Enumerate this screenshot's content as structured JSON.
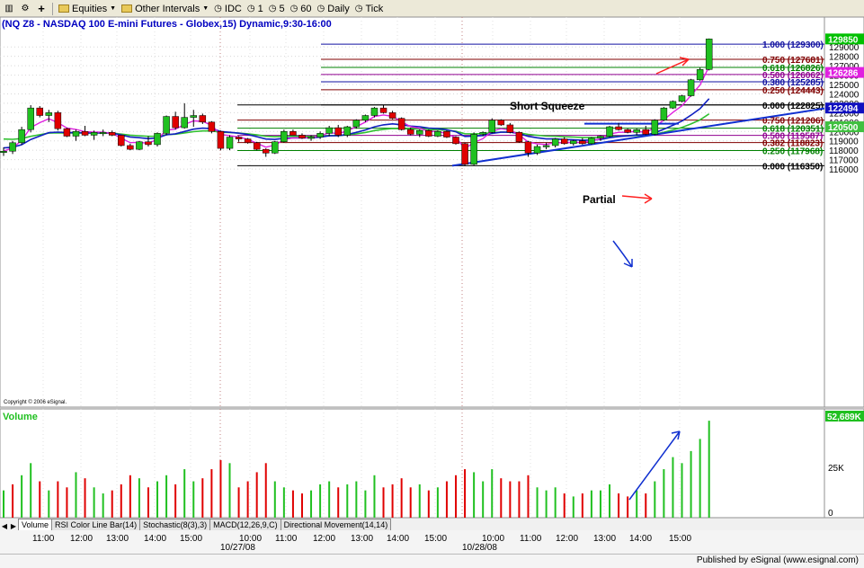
{
  "toolbar": {
    "equities_label": "Equities",
    "intervals_label": "Other Intervals",
    "idc_label": "IDC",
    "btn_1": "1",
    "btn_5": "5",
    "btn_60": "60",
    "daily_label": "Daily",
    "tick_label": "Tick"
  },
  "title_symbol": "(NQ Z8 - NASDAQ 100 E-mini Futures - Globex,15)",
  "title_detail": "Dynamic,9:30-16:00",
  "copyright": "Copyright © 2006 eSignal.",
  "annotations": {
    "short_squeeze": "Short Squeeze",
    "partial": "Partial"
  },
  "fib_upper": [
    {
      "label": "1.000 (129300)",
      "value": 12930,
      "color": "#1010a0"
    },
    {
      "label": "0.750 (127681)",
      "value": 12768.1,
      "color": "#800000"
    },
    {
      "label": "0.618 (126826)",
      "value": 12682.6,
      "color": "#008000"
    },
    {
      "label": "0.500 (126062)",
      "value": 12606.2,
      "color": "#900090"
    },
    {
      "label": "0.380 (125285)",
      "value": 12528.5,
      "color": "#1010a0"
    },
    {
      "label": "0.250 (124443)",
      "value": 12444.3,
      "color": "#800000"
    },
    {
      "label": "0.000 (122825)",
      "value": 12282.5,
      "color": "#000000"
    }
  ],
  "fib_lower": [
    {
      "label": "0.000 (122825)",
      "value": 12282.5,
      "color": "#000000"
    },
    {
      "label": "0.750 (121206)",
      "value": 12120.6,
      "color": "#800000"
    },
    {
      "label": "0.618 (120351)",
      "value": 12035.1,
      "color": "#008000"
    },
    {
      "label": "0.500 (119587)",
      "value": 11958.7,
      "color": "#900090"
    },
    {
      "label": "0.382 (118823)",
      "value": 11882.3,
      "color": "#800000"
    },
    {
      "label": "0.250 (117968)",
      "value": 11796.8,
      "color": "#008000"
    },
    {
      "label": "0.000 (116350)",
      "value": 11635,
      "color": "#000000"
    }
  ],
  "price_axis": {
    "ticks": [
      "129000",
      "128000",
      "127000",
      "126000",
      "125000",
      "124000",
      "123000",
      "122000",
      "121000",
      "120000",
      "119000",
      "118000",
      "117000",
      "116000"
    ],
    "badges": [
      {
        "label": "129850",
        "value": 12985,
        "bg": "#00c000",
        "fg": "#ffffff"
      },
      {
        "label": "126286",
        "value": 12628.6,
        "bg": "#e020e0",
        "fg": "#ffffff"
      },
      {
        "label": "122494",
        "value": 12249.4,
        "bg": "#1010c0",
        "fg": "#ffffff"
      },
      {
        "label": "120500",
        "value": 12050,
        "bg": "#40c040",
        "fg": "#ffffff"
      }
    ]
  },
  "volume_panel": {
    "label": "Volume",
    "badge": "52,689K",
    "ticks": [
      "25K",
      "0"
    ]
  },
  "time_axis": {
    "ticks": [
      "11:00",
      "12:00",
      "13:00",
      "14:00",
      "15:00",
      "10:00",
      "11:00",
      "12:00",
      "13:00",
      "14:00",
      "15:00",
      "10:00",
      "11:00",
      "12:00",
      "13:00",
      "14:00",
      "15:00"
    ],
    "dates": [
      "10/27/08",
      "10/28/08"
    ]
  },
  "tabs": [
    "Volume",
    "RSI Color Line Bar(14)",
    "Stochastic(8(3),3)",
    "MACD(12,26,9,C)",
    "Directional Movement(14,14)"
  ],
  "published": "Published by eSignal (www.esignal.com)",
  "chart_data": {
    "type": "candlestick",
    "y_range": [
      11570,
      13000
    ],
    "bar_count": 78,
    "candles": [
      {
        "o": 11780,
        "h": 11830,
        "l": 11740,
        "c": 11790
      },
      {
        "o": 11790,
        "h": 11900,
        "l": 11760,
        "c": 11880
      },
      {
        "o": 11880,
        "h": 12050,
        "l": 11860,
        "c": 12020
      },
      {
        "o": 12020,
        "h": 12280,
        "l": 11990,
        "c": 12250
      },
      {
        "o": 12250,
        "h": 12270,
        "l": 12150,
        "c": 12170
      },
      {
        "o": 12170,
        "h": 12230,
        "l": 12100,
        "c": 12200
      },
      {
        "o": 12200,
        "h": 12220,
        "l": 12010,
        "c": 12030
      },
      {
        "o": 12030,
        "h": 12040,
        "l": 11940,
        "c": 11950
      },
      {
        "o": 11950,
        "h": 12020,
        "l": 11900,
        "c": 12000
      },
      {
        "o": 12000,
        "h": 12060,
        "l": 11950,
        "c": 11960
      },
      {
        "o": 11960,
        "h": 12010,
        "l": 11910,
        "c": 11990
      },
      {
        "o": 11990,
        "h": 12020,
        "l": 11950,
        "c": 11990
      },
      {
        "o": 11990,
        "h": 12010,
        "l": 11950,
        "c": 11960
      },
      {
        "o": 11960,
        "h": 11960,
        "l": 11840,
        "c": 11850
      },
      {
        "o": 11850,
        "h": 11870,
        "l": 11800,
        "c": 11810
      },
      {
        "o": 11810,
        "h": 11900,
        "l": 11800,
        "c": 11890
      },
      {
        "o": 11890,
        "h": 11950,
        "l": 11840,
        "c": 11860
      },
      {
        "o": 11860,
        "h": 11990,
        "l": 11840,
        "c": 11980
      },
      {
        "o": 11980,
        "h": 12170,
        "l": 11960,
        "c": 12160
      },
      {
        "o": 12160,
        "h": 12210,
        "l": 12020,
        "c": 12040
      },
      {
        "o": 12040,
        "h": 12300,
        "l": 12030,
        "c": 12150
      },
      {
        "o": 12150,
        "h": 12230,
        "l": 12050,
        "c": 12170
      },
      {
        "o": 12170,
        "h": 12190,
        "l": 12080,
        "c": 12100
      },
      {
        "o": 12100,
        "h": 12110,
        "l": 11980,
        "c": 12000
      },
      {
        "o": 12000,
        "h": 12010,
        "l": 11800,
        "c": 11820
      },
      {
        "o": 11820,
        "h": 11960,
        "l": 11800,
        "c": 11940
      },
      {
        "o": 11940,
        "h": 11950,
        "l": 11890,
        "c": 11920
      },
      {
        "o": 11920,
        "h": 11930,
        "l": 11870,
        "c": 11880
      },
      {
        "o": 11880,
        "h": 11890,
        "l": 11800,
        "c": 11810
      },
      {
        "o": 11810,
        "h": 11820,
        "l": 11730,
        "c": 11770
      },
      {
        "o": 11770,
        "h": 11900,
        "l": 11760,
        "c": 11890
      },
      {
        "o": 11890,
        "h": 12020,
        "l": 11880,
        "c": 12000
      },
      {
        "o": 12000,
        "h": 12020,
        "l": 11960,
        "c": 11960
      },
      {
        "o": 11960,
        "h": 11980,
        "l": 11920,
        "c": 11930
      },
      {
        "o": 11930,
        "h": 11960,
        "l": 11900,
        "c": 11940
      },
      {
        "o": 11940,
        "h": 12000,
        "l": 11920,
        "c": 11980
      },
      {
        "o": 11980,
        "h": 12060,
        "l": 11950,
        "c": 12040
      },
      {
        "o": 12040,
        "h": 12070,
        "l": 11940,
        "c": 11960
      },
      {
        "o": 11960,
        "h": 12060,
        "l": 11940,
        "c": 12050
      },
      {
        "o": 12050,
        "h": 12130,
        "l": 12030,
        "c": 12120
      },
      {
        "o": 12120,
        "h": 12180,
        "l": 12100,
        "c": 12170
      },
      {
        "o": 12170,
        "h": 12260,
        "l": 12150,
        "c": 12250
      },
      {
        "o": 12250,
        "h": 12280,
        "l": 12190,
        "c": 12200
      },
      {
        "o": 12200,
        "h": 12220,
        "l": 12130,
        "c": 12140
      },
      {
        "o": 12140,
        "h": 12150,
        "l": 12010,
        "c": 12020
      },
      {
        "o": 12020,
        "h": 12040,
        "l": 11960,
        "c": 11970
      },
      {
        "o": 11970,
        "h": 12020,
        "l": 11940,
        "c": 12010
      },
      {
        "o": 12010,
        "h": 12020,
        "l": 11940,
        "c": 11950
      },
      {
        "o": 11950,
        "h": 12010,
        "l": 11940,
        "c": 12000
      },
      {
        "o": 12000,
        "h": 12010,
        "l": 11930,
        "c": 11940
      },
      {
        "o": 11940,
        "h": 11950,
        "l": 11860,
        "c": 11870
      },
      {
        "o": 11870,
        "h": 11880,
        "l": 11630,
        "c": 11650
      },
      {
        "o": 11650,
        "h": 11990,
        "l": 11640,
        "c": 11970
      },
      {
        "o": 11970,
        "h": 12000,
        "l": 11950,
        "c": 11990
      },
      {
        "o": 11990,
        "h": 12140,
        "l": 11980,
        "c": 12120
      },
      {
        "o": 12120,
        "h": 12130,
        "l": 12060,
        "c": 12070
      },
      {
        "o": 12070,
        "h": 12090,
        "l": 11980,
        "c": 11990
      },
      {
        "o": 11990,
        "h": 12000,
        "l": 11880,
        "c": 11890
      },
      {
        "o": 11890,
        "h": 11900,
        "l": 11730,
        "c": 11770
      },
      {
        "o": 11770,
        "h": 11860,
        "l": 11750,
        "c": 11840
      },
      {
        "o": 11840,
        "h": 11880,
        "l": 11810,
        "c": 11850
      },
      {
        "o": 11850,
        "h": 11930,
        "l": 11830,
        "c": 11920
      },
      {
        "o": 11920,
        "h": 11940,
        "l": 11860,
        "c": 11870
      },
      {
        "o": 11870,
        "h": 11910,
        "l": 11850,
        "c": 11900
      },
      {
        "o": 11900,
        "h": 11930,
        "l": 11860,
        "c": 11870
      },
      {
        "o": 11870,
        "h": 11940,
        "l": 11860,
        "c": 11930
      },
      {
        "o": 11930,
        "h": 11960,
        "l": 11900,
        "c": 11950
      },
      {
        "o": 11950,
        "h": 12060,
        "l": 11940,
        "c": 12050
      },
      {
        "o": 12050,
        "h": 12090,
        "l": 12010,
        "c": 12020
      },
      {
        "o": 12020,
        "h": 12030,
        "l": 11980,
        "c": 11990
      },
      {
        "o": 11990,
        "h": 12030,
        "l": 11960,
        "c": 12020
      },
      {
        "o": 12020,
        "h": 12060,
        "l": 11960,
        "c": 11970
      },
      {
        "o": 11970,
        "h": 12130,
        "l": 11960,
        "c": 12120
      },
      {
        "o": 12120,
        "h": 12260,
        "l": 12110,
        "c": 12250
      },
      {
        "o": 12250,
        "h": 12330,
        "l": 12240,
        "c": 12320
      },
      {
        "o": 12320,
        "h": 12390,
        "l": 12310,
        "c": 12380
      },
      {
        "o": 12380,
        "h": 12560,
        "l": 12370,
        "c": 12550
      },
      {
        "o": 12550,
        "h": 12680,
        "l": 12540,
        "c": 12660
      }
    ],
    "last_bar": {
      "o": 12660,
      "h": 12990,
      "l": 12650,
      "c": 12985
    },
    "volume": [
      {
        "v": 9,
        "up": true
      },
      {
        "v": 11,
        "up": false
      },
      {
        "v": 14,
        "up": true
      },
      {
        "v": 18,
        "up": true
      },
      {
        "v": 12,
        "up": false
      },
      {
        "v": 9,
        "up": true
      },
      {
        "v": 12,
        "up": false
      },
      {
        "v": 10,
        "up": false
      },
      {
        "v": 15,
        "up": true
      },
      {
        "v": 13,
        "up": false
      },
      {
        "v": 10,
        "up": true
      },
      {
        "v": 8,
        "up": true
      },
      {
        "v": 9,
        "up": false
      },
      {
        "v": 11,
        "up": false
      },
      {
        "v": 14,
        "up": false
      },
      {
        "v": 13,
        "up": true
      },
      {
        "v": 10,
        "up": false
      },
      {
        "v": 12,
        "up": true
      },
      {
        "v": 14,
        "up": true
      },
      {
        "v": 11,
        "up": false
      },
      {
        "v": 16,
        "up": true
      },
      {
        "v": 12,
        "up": true
      },
      {
        "v": 13,
        "up": false
      },
      {
        "v": 16,
        "up": false
      },
      {
        "v": 19,
        "up": false
      },
      {
        "v": 18,
        "up": true
      },
      {
        "v": 10,
        "up": false
      },
      {
        "v": 12,
        "up": false
      },
      {
        "v": 15,
        "up": false
      },
      {
        "v": 18,
        "up": false
      },
      {
        "v": 12,
        "up": true
      },
      {
        "v": 10,
        "up": true
      },
      {
        "v": 9,
        "up": false
      },
      {
        "v": 8,
        "up": false
      },
      {
        "v": 9,
        "up": true
      },
      {
        "v": 11,
        "up": true
      },
      {
        "v": 12,
        "up": true
      },
      {
        "v": 10,
        "up": false
      },
      {
        "v": 11,
        "up": true
      },
      {
        "v": 12,
        "up": true
      },
      {
        "v": 9,
        "up": true
      },
      {
        "v": 14,
        "up": true
      },
      {
        "v": 10,
        "up": false
      },
      {
        "v": 11,
        "up": false
      },
      {
        "v": 13,
        "up": false
      },
      {
        "v": 10,
        "up": false
      },
      {
        "v": 11,
        "up": true
      },
      {
        "v": 9,
        "up": false
      },
      {
        "v": 10,
        "up": true
      },
      {
        "v": 12,
        "up": false
      },
      {
        "v": 14,
        "up": false
      },
      {
        "v": 16,
        "up": false
      },
      {
        "v": 15,
        "up": true
      },
      {
        "v": 12,
        "up": true
      },
      {
        "v": 16,
        "up": true
      },
      {
        "v": 13,
        "up": false
      },
      {
        "v": 12,
        "up": false
      },
      {
        "v": 12,
        "up": false
      },
      {
        "v": 14,
        "up": false
      },
      {
        "v": 10,
        "up": true
      },
      {
        "v": 9,
        "up": true
      },
      {
        "v": 10,
        "up": true
      },
      {
        "v": 8,
        "up": false
      },
      {
        "v": 7,
        "up": true
      },
      {
        "v": 8,
        "up": false
      },
      {
        "v": 9,
        "up": true
      },
      {
        "v": 9,
        "up": true
      },
      {
        "v": 11,
        "up": true
      },
      {
        "v": 8,
        "up": false
      },
      {
        "v": 7,
        "up": false
      },
      {
        "v": 9,
        "up": true
      },
      {
        "v": 8,
        "up": false
      },
      {
        "v": 12,
        "up": true
      },
      {
        "v": 16,
        "up": true
      },
      {
        "v": 20,
        "up": true
      },
      {
        "v": 18,
        "up": true
      },
      {
        "v": 22,
        "up": true
      },
      {
        "v": 26,
        "up": true
      },
      {
        "v": 32,
        "up": true
      }
    ],
    "volume_range": [
      0,
      35
    ]
  }
}
